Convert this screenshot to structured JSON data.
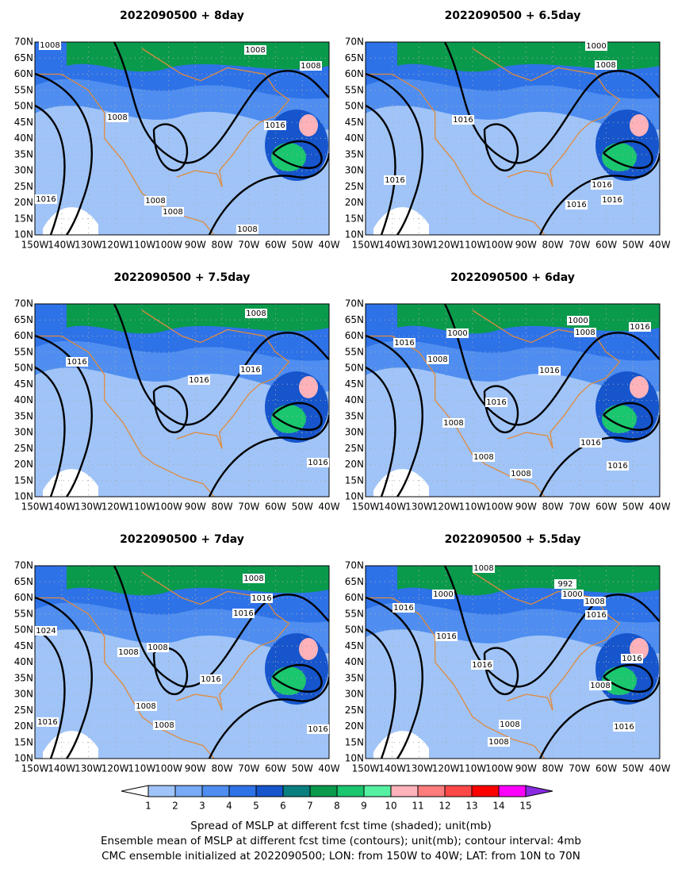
{
  "panels": [
    {
      "title": "2022090500  +  8day",
      "contour_labels": [
        "1008",
        "1008",
        "1008",
        "1008",
        "1016",
        "1016",
        "1008",
        "1008",
        "1008"
      ]
    },
    {
      "title": "2022090500  +  6.5day",
      "contour_labels": [
        "1000",
        "1008",
        "1016",
        "1016",
        "1016",
        "1016",
        "1016"
      ]
    },
    {
      "title": "2022090500  +  7.5day",
      "contour_labels": [
        "1008",
        "1016",
        "1016",
        "1016",
        "1016"
      ]
    },
    {
      "title": "2022090500  +  6day",
      "contour_labels": [
        "1000",
        "1000",
        "1008",
        "1016",
        "1016",
        "1008",
        "1016",
        "1016",
        "1008",
        "1008",
        "1016",
        "1016",
        "1008"
      ]
    },
    {
      "title": "2022090500  +  7day",
      "contour_labels": [
        "1008",
        "1016",
        "1016",
        "1024",
        "1008",
        "1008",
        "1016",
        "1008",
        "1008",
        "1016",
        "1016"
      ]
    },
    {
      "title": "2022090500  +  5.5day",
      "contour_labels": [
        "1008",
        "992",
        "1000",
        "1000",
        "1008",
        "1016",
        "1016",
        "1016",
        "1016",
        "1016",
        "1008",
        "1008",
        "1008",
        "1016"
      ]
    }
  ],
  "lat_ticks": [
    "70N",
    "65N",
    "60N",
    "55N",
    "50N",
    "45N",
    "40N",
    "35N",
    "30N",
    "25N",
    "20N",
    "15N",
    "10N"
  ],
  "lon_ticks": [
    "150W",
    "140W",
    "130W",
    "120W",
    "110W",
    "100W",
    "90W",
    "80W",
    "70W",
    "60W",
    "50W",
    "40W"
  ],
  "colorbar": {
    "levels": [
      1,
      2,
      3,
      4,
      5,
      6,
      7,
      8,
      9,
      10,
      11,
      12,
      13,
      14,
      15
    ],
    "colors": [
      "#ffffff",
      "#a0c4f8",
      "#78aaf5",
      "#4f8ef0",
      "#2e72e8",
      "#1655cc",
      "#0a7f80",
      "#0a9a4c",
      "#1ac66e",
      "#55f0a2",
      "#ffb2ba",
      "#ff7c7c",
      "#ff4848",
      "#ff0000",
      "#ff00ff",
      "#8a2be2"
    ]
  },
  "caption": [
    "Spread of MSLP at different fcst time (shaded); unit(mb)",
    "Ensemble mean of MSLP at different fcst time (contours); unit(mb); contour interval: 4mb",
    "CMC ensemble initialized at 2022090500; LON: from 150W to 40W; LAT: from 10N to 70N"
  ]
}
